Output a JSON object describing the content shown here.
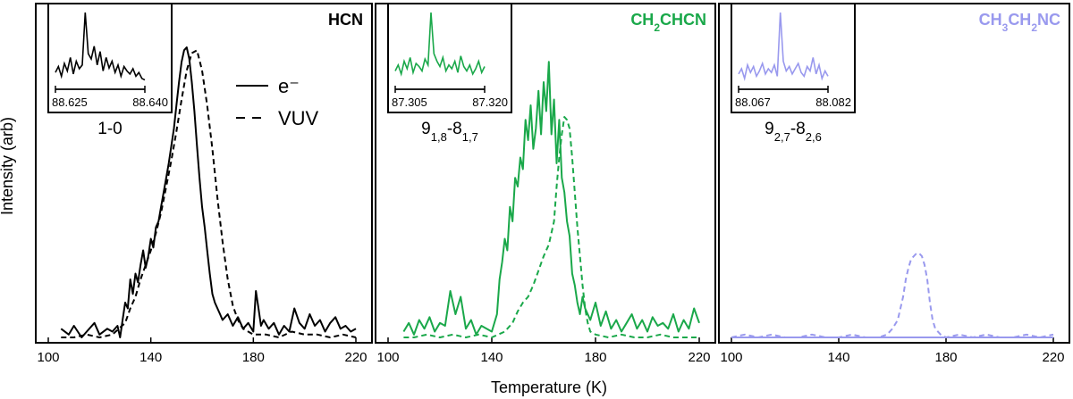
{
  "figure": {
    "xlabel": "Temperature (K)",
    "ylabel": "Intensity (arb)"
  },
  "legend": {
    "solid_label": "e⁻",
    "dashed_label": "VUV"
  },
  "colors": {
    "HCN": "#000000",
    "CH2CHCN": "#1aa84a",
    "CH3CH2NC": "#9999ee"
  },
  "chart_data": [
    {
      "type": "line",
      "title": "HCN",
      "title_sub": [
        "HCN"
      ],
      "xlabel": "Temperature (K)",
      "ylabel": "Intensity (arb)",
      "xlim": [
        100,
        220
      ],
      "xticks": [
        100,
        140,
        180,
        220
      ],
      "color": "#000000",
      "legend": [
        "e⁻",
        "VUV"
      ],
      "series": [
        {
          "name": "e⁻",
          "style": "solid",
          "x": [
            105,
            108,
            110,
            113,
            115,
            118,
            120,
            123,
            125,
            127,
            128,
            129,
            130,
            131,
            132,
            133,
            134,
            135,
            136,
            137,
            138,
            139,
            140,
            141,
            142,
            143,
            144,
            145,
            146,
            147,
            148,
            149,
            150,
            151,
            152,
            153,
            154,
            155,
            156,
            157,
            158,
            159,
            160,
            161,
            162,
            163,
            164,
            165,
            166,
            167,
            168,
            170,
            172,
            174,
            176,
            178,
            180,
            181,
            182,
            183,
            184,
            186,
            188,
            190,
            192,
            194,
            196,
            198,
            200,
            202,
            204,
            206,
            208,
            210,
            212,
            214,
            216,
            218,
            220
          ],
          "y": [
            0.03,
            0.01,
            0.04,
            0.0,
            0.02,
            0.05,
            0.01,
            0.03,
            0.02,
            0.04,
            0.0,
            0.06,
            0.12,
            0.1,
            0.2,
            0.15,
            0.22,
            0.19,
            0.25,
            0.3,
            0.24,
            0.28,
            0.34,
            0.31,
            0.38,
            0.4,
            0.45,
            0.5,
            0.55,
            0.6,
            0.66,
            0.72,
            0.8,
            0.88,
            0.95,
            0.99,
            1.0,
            0.96,
            0.88,
            0.78,
            0.66,
            0.55,
            0.45,
            0.38,
            0.3,
            0.22,
            0.15,
            0.12,
            0.1,
            0.08,
            0.06,
            0.08,
            0.04,
            0.07,
            0.03,
            0.05,
            0.02,
            0.16,
            0.1,
            0.04,
            0.06,
            0.03,
            0.05,
            0.01,
            0.04,
            0.02,
            0.1,
            0.05,
            0.03,
            0.08,
            0.04,
            0.06,
            0.02,
            0.05,
            0.07,
            0.03,
            0.04,
            0.02,
            0.03
          ]
        },
        {
          "name": "VUV",
          "style": "dashed",
          "x": [
            105,
            110,
            115,
            120,
            125,
            130,
            132,
            134,
            136,
            138,
            140,
            142,
            144,
            146,
            148,
            150,
            152,
            154,
            156,
            158,
            160,
            162,
            164,
            166,
            168,
            170,
            172,
            174,
            176,
            178,
            180,
            185,
            190,
            195,
            200,
            205,
            210,
            215,
            220
          ],
          "y": [
            0.0,
            0.0,
            0.01,
            0.0,
            0.01,
            0.05,
            0.1,
            0.14,
            0.2,
            0.25,
            0.3,
            0.36,
            0.43,
            0.52,
            0.61,
            0.71,
            0.82,
            0.92,
            0.98,
            0.99,
            0.92,
            0.8,
            0.65,
            0.48,
            0.33,
            0.2,
            0.11,
            0.06,
            0.03,
            0.02,
            0.01,
            0.01,
            0.0,
            0.02,
            0.01,
            0.01,
            0.0,
            0.01,
            0.0
          ]
        }
      ],
      "inset": {
        "type": "line",
        "xlim": [
          88.625,
          88.64
        ],
        "xticks": [
          "88.625",
          "88.640"
        ],
        "label": "1-0",
        "label_sub": [
          "1-0"
        ],
        "x": [
          88.625,
          88.6255,
          88.626,
          88.6265,
          88.627,
          88.6275,
          88.628,
          88.6285,
          88.629,
          88.6295,
          88.63,
          88.6305,
          88.631,
          88.6315,
          88.632,
          88.6325,
          88.633,
          88.6335,
          88.634,
          88.6345,
          88.635,
          88.6355,
          88.636,
          88.6365,
          88.637,
          88.6375,
          88.638,
          88.6385,
          88.639,
          88.6395,
          88.64
        ],
        "y": [
          0.2,
          0.28,
          0.15,
          0.32,
          0.22,
          0.4,
          0.18,
          0.35,
          0.25,
          0.3,
          1.0,
          0.45,
          0.38,
          0.55,
          0.3,
          0.48,
          0.22,
          0.4,
          0.26,
          0.35,
          0.2,
          0.3,
          0.15,
          0.28,
          0.22,
          0.18,
          0.25,
          0.15,
          0.2,
          0.12,
          0.1
        ]
      }
    },
    {
      "type": "line",
      "title": "CH2CHCN",
      "title_sub": [
        "CH",
        "2",
        "CHCN"
      ],
      "xlabel": "Temperature (K)",
      "xlim": [
        100,
        220
      ],
      "xticks": [
        100,
        140,
        180,
        220
      ],
      "color": "#1aa84a",
      "series": [
        {
          "name": "e⁻",
          "style": "solid",
          "x": [
            106,
            108,
            110,
            112,
            114,
            116,
            118,
            120,
            122,
            124,
            126,
            128,
            130,
            132,
            134,
            136,
            138,
            140,
            142,
            143,
            144,
            145,
            146,
            147,
            148,
            149,
            150,
            151,
            152,
            153,
            154,
            155,
            156,
            157,
            158,
            159,
            160,
            161,
            162,
            163,
            164,
            165,
            166,
            167,
            168,
            169,
            170,
            171,
            172,
            173,
            174,
            175,
            176,
            178,
            180,
            182,
            184,
            186,
            188,
            190,
            192,
            194,
            196,
            198,
            200,
            202,
            204,
            206,
            208,
            210,
            212,
            214,
            216,
            218,
            220
          ],
          "y": [
            0.02,
            0.05,
            0.01,
            0.06,
            0.03,
            0.07,
            0.02,
            0.05,
            0.04,
            0.16,
            0.08,
            0.14,
            0.03,
            0.06,
            0.01,
            0.04,
            0.03,
            0.02,
            0.08,
            0.2,
            0.26,
            0.34,
            0.3,
            0.45,
            0.4,
            0.55,
            0.52,
            0.62,
            0.58,
            0.75,
            0.68,
            0.8,
            0.65,
            0.72,
            0.85,
            0.7,
            0.88,
            0.78,
            0.95,
            0.7,
            0.82,
            0.6,
            0.75,
            0.55,
            0.5,
            0.4,
            0.35,
            0.22,
            0.18,
            0.12,
            0.08,
            0.14,
            0.1,
            0.06,
            0.12,
            0.04,
            0.09,
            0.03,
            0.06,
            0.02,
            0.05,
            0.08,
            0.03,
            0.06,
            0.02,
            0.07,
            0.04,
            0.05,
            0.03,
            0.08,
            0.02,
            0.06,
            0.03,
            0.1,
            0.05
          ]
        },
        {
          "name": "VUV",
          "style": "dashed",
          "x": [
            106,
            110,
            115,
            120,
            125,
            130,
            135,
            140,
            145,
            148,
            150,
            152,
            154,
            156,
            158,
            160,
            162,
            164,
            165,
            166,
            167,
            168,
            169,
            170,
            171,
            172,
            173,
            174,
            175,
            176,
            177,
            178,
            180,
            185,
            190,
            195,
            200,
            205,
            210,
            215,
            220
          ],
          "y": [
            0.0,
            0.0,
            0.01,
            0.0,
            0.01,
            0.0,
            0.01,
            0.0,
            0.02,
            0.05,
            0.09,
            0.12,
            0.14,
            0.18,
            0.23,
            0.28,
            0.32,
            0.4,
            0.52,
            0.62,
            0.7,
            0.76,
            0.75,
            0.72,
            0.62,
            0.5,
            0.38,
            0.28,
            0.18,
            0.1,
            0.05,
            0.02,
            0.01,
            0.0,
            0.01,
            0.0,
            0.0,
            0.01,
            0.0,
            0.0,
            0.0
          ]
        }
      ],
      "inset": {
        "type": "line",
        "xlim": [
          87.305,
          87.32
        ],
        "xticks": [
          "87.305",
          "87.320"
        ],
        "label": "9_{1,8}-8_{1,7}",
        "label_sub": [
          "9",
          "1,8",
          "-8",
          "1,7"
        ],
        "x": [
          87.305,
          87.3055,
          87.306,
          87.3065,
          87.307,
          87.3075,
          87.308,
          87.3085,
          87.309,
          87.3095,
          87.31,
          87.3105,
          87.311,
          87.3115,
          87.312,
          87.3125,
          87.313,
          87.3135,
          87.314,
          87.3145,
          87.315,
          87.3155,
          87.316,
          87.3165,
          87.317,
          87.3175,
          87.318,
          87.3185,
          87.319,
          87.3195,
          87.32
        ],
        "y": [
          0.22,
          0.3,
          0.18,
          0.35,
          0.25,
          0.4,
          0.2,
          0.32,
          0.28,
          0.22,
          0.38,
          0.3,
          1.0,
          0.45,
          0.35,
          0.28,
          0.4,
          0.22,
          0.3,
          0.25,
          0.35,
          0.2,
          0.42,
          0.28,
          0.22,
          0.3,
          0.18,
          0.25,
          0.35,
          0.2,
          0.28
        ]
      }
    },
    {
      "type": "line",
      "title": "CH3CH2NC",
      "title_sub": [
        "CH",
        "3",
        "CH",
        "2",
        "NC"
      ],
      "xlabel": "Temperature (K)",
      "xlim": [
        100,
        220
      ],
      "xticks": [
        100,
        140,
        180,
        220
      ],
      "color": "#9999ee",
      "series": [
        {
          "name": "e⁻",
          "style": "solid",
          "x": [
            100,
            110,
            120,
            130,
            140,
            150,
            160,
            170,
            180,
            190,
            200,
            210,
            220
          ],
          "y": [
            0.0,
            0.0,
            0.0,
            0.0,
            0.0,
            0.0,
            0.0,
            0.0,
            0.0,
            0.0,
            0.0,
            0.0,
            0.0
          ]
        },
        {
          "name": "VUV",
          "style": "dashed",
          "x": [
            100,
            105,
            110,
            115,
            120,
            125,
            130,
            135,
            140,
            145,
            150,
            155,
            158,
            160,
            162,
            164,
            165,
            166,
            167,
            168,
            169,
            170,
            171,
            172,
            173,
            174,
            175,
            176,
            178,
            180,
            185,
            190,
            195,
            200,
            205,
            210,
            215,
            220
          ],
          "y": [
            0.0,
            0.01,
            0.0,
            0.01,
            0.0,
            0.0,
            0.01,
            0.0,
            0.0,
            0.01,
            0.0,
            0.0,
            0.01,
            0.03,
            0.06,
            0.14,
            0.2,
            0.24,
            0.27,
            0.28,
            0.29,
            0.29,
            0.28,
            0.25,
            0.2,
            0.12,
            0.06,
            0.03,
            0.01,
            0.0,
            0.01,
            0.0,
            0.01,
            0.0,
            0.0,
            0.01,
            0.0,
            0.01
          ]
        }
      ],
      "inset": {
        "type": "line",
        "xlim": [
          88.067,
          88.082
        ],
        "xticks": [
          "88.067",
          "88.082"
        ],
        "label": "9_{2,7}-8_{2,6}",
        "label_sub": [
          "9",
          "2,7",
          "-8",
          "2,6"
        ],
        "x": [
          88.067,
          88.0675,
          88.068,
          88.0685,
          88.069,
          88.0695,
          88.07,
          88.0705,
          88.071,
          88.0715,
          88.072,
          88.0725,
          88.073,
          88.0735,
          88.074,
          88.0745,
          88.075,
          88.0755,
          88.076,
          88.0765,
          88.077,
          88.0775,
          88.078,
          88.0785,
          88.079,
          88.0795,
          88.08,
          88.0805,
          88.081,
          88.0815,
          88.082
        ],
        "y": [
          0.18,
          0.25,
          0.12,
          0.3,
          0.2,
          0.28,
          0.15,
          0.22,
          0.32,
          0.18,
          0.25,
          0.2,
          0.3,
          0.15,
          1.0,
          0.35,
          0.22,
          0.28,
          0.18,
          0.25,
          0.32,
          0.2,
          0.15,
          0.28,
          0.22,
          0.4,
          0.18,
          0.3,
          0.12,
          0.22,
          0.15
        ]
      }
    }
  ]
}
